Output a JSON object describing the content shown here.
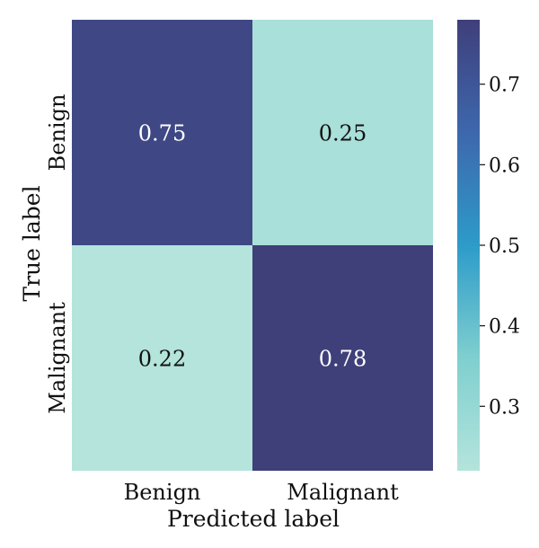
{
  "chart_data": {
    "type": "heatmap",
    "title": "",
    "xlabel": "Predicted label",
    "ylabel": "True label",
    "x_categories": [
      "Benign",
      "Malignant"
    ],
    "y_categories": [
      "Benign",
      "Malignant"
    ],
    "values": [
      [
        0.75,
        0.25
      ],
      [
        0.22,
        0.78
      ]
    ],
    "value_labels": [
      [
        "0.75",
        "0.25"
      ],
      [
        "0.22",
        "0.78"
      ]
    ],
    "colorbar": {
      "ticks": [
        0.3,
        0.4,
        0.5,
        0.6,
        0.7
      ],
      "tick_labels": [
        "0.3",
        "0.4",
        "0.5",
        "0.6",
        "0.7"
      ],
      "range": [
        0.22,
        0.78
      ],
      "colors": [
        "#b4e4dc",
        "#7fcfcf",
        "#2d9bc9",
        "#3e67ad",
        "#3f3f7a"
      ]
    },
    "text_colors": {
      "on_dark": "#ffffff",
      "on_light": "#111111"
    }
  }
}
